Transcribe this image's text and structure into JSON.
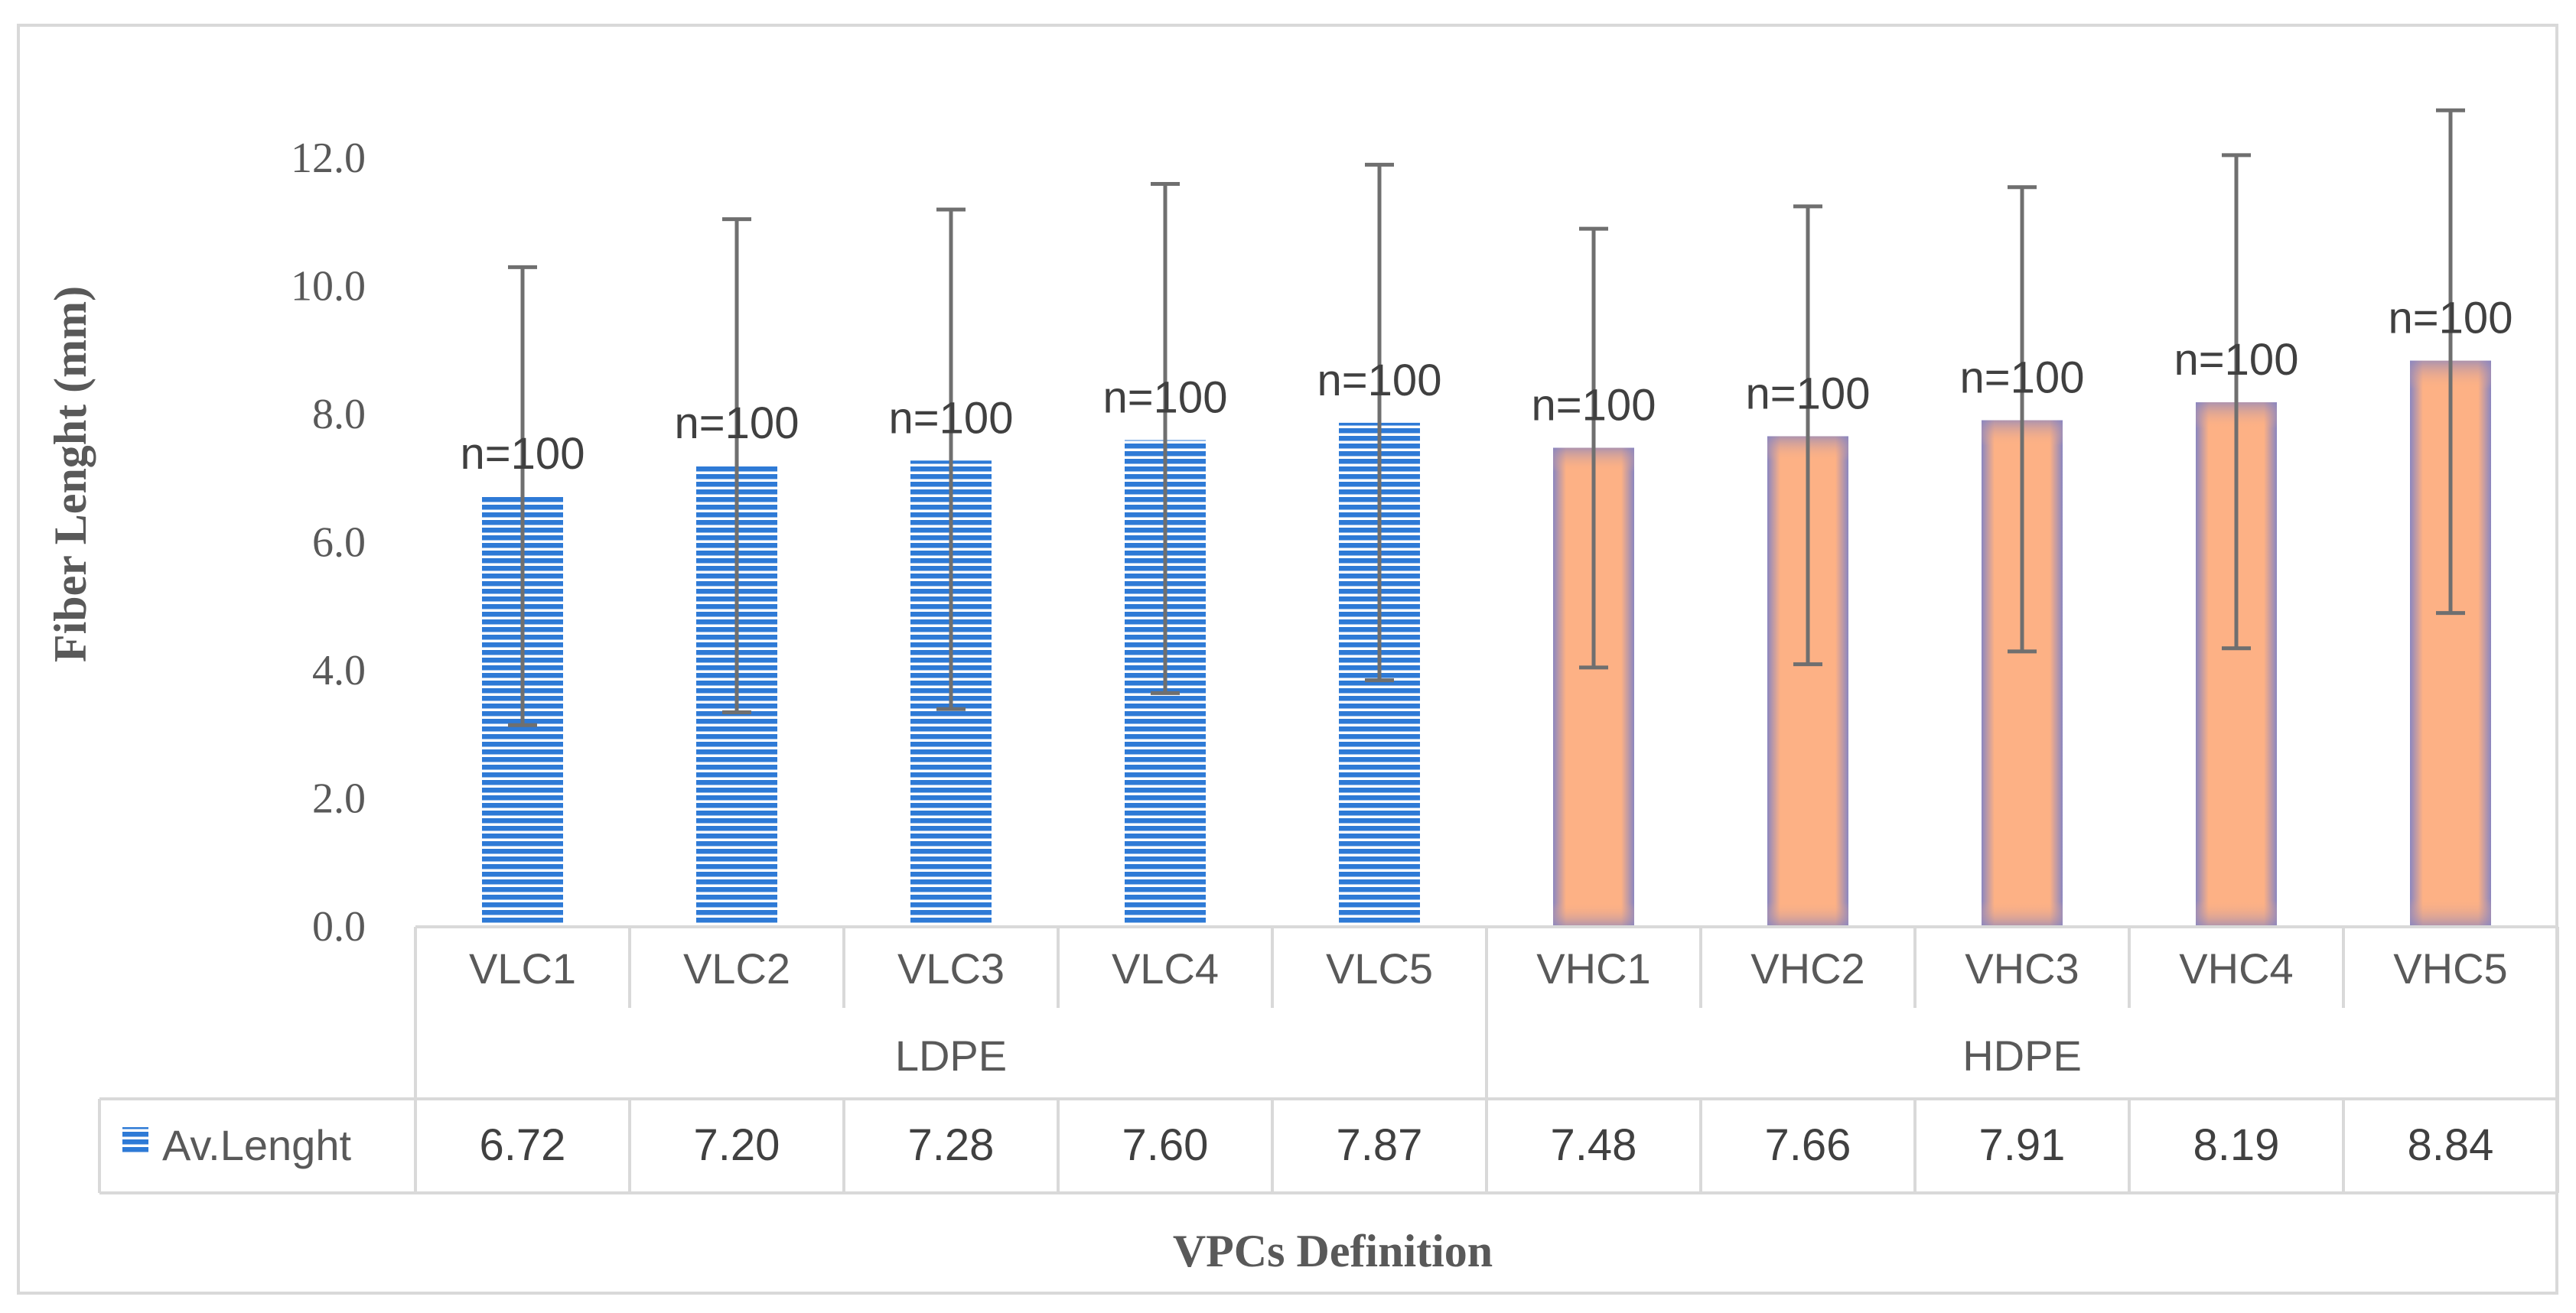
{
  "chart_data": {
    "type": "bar",
    "ylabel": "Fiber Lenght (mm)",
    "xlabel": "VPCs Definition",
    "ylim": [
      0,
      12
    ],
    "yticks": [
      "0.0",
      "2.0",
      "4.0",
      "6.0",
      "8.0",
      "10.0",
      "12.0"
    ],
    "grid": false,
    "categories": [
      "VLC1",
      "VLC2",
      "VLC3",
      "VLC4",
      "VLC5",
      "VHC1",
      "VHC2",
      "VHC3",
      "VHC4",
      "VHC5"
    ],
    "groups": [
      {
        "label": "LDPE",
        "categories": [
          "VLC1",
          "VLC2",
          "VLC3",
          "VLC4",
          "VLC5"
        ]
      },
      {
        "label": "HDPE",
        "categories": [
          "VHC1",
          "VHC2",
          "VHC3",
          "VHC4",
          "VHC5"
        ]
      }
    ],
    "series": [
      {
        "name": "Av.Lenght",
        "values": [
          6.72,
          7.2,
          7.28,
          7.6,
          7.87,
          7.48,
          7.66,
          7.91,
          8.19,
          8.84
        ],
        "value_labels": [
          "6.72",
          "7.20",
          "7.28",
          "7.60",
          "7.87",
          "7.48",
          "7.66",
          "7.91",
          "8.19",
          "8.84"
        ],
        "error_low": [
          3.15,
          3.35,
          3.4,
          3.65,
          3.85,
          4.05,
          4.1,
          4.3,
          4.35,
          4.9
        ],
        "error_high": [
          10.3,
          11.05,
          11.2,
          11.6,
          11.9,
          10.9,
          11.25,
          11.55,
          12.05,
          12.75
        ],
        "annotations": [
          "n=100",
          "n=100",
          "n=100",
          "n=100",
          "n=100",
          "n=100",
          "n=100",
          "n=100",
          "n=100",
          "n=100"
        ]
      }
    ],
    "colors": {
      "ldpe_bar": "#2e7ad6",
      "ldpe_stripe": "#ffffff",
      "hdpe_fill": "#fdb185",
      "hdpe_edge": "#8a86c0",
      "error_bar": "#6f6f6f",
      "axis_text": "#595959",
      "table_line": "#d9d9d9"
    }
  }
}
